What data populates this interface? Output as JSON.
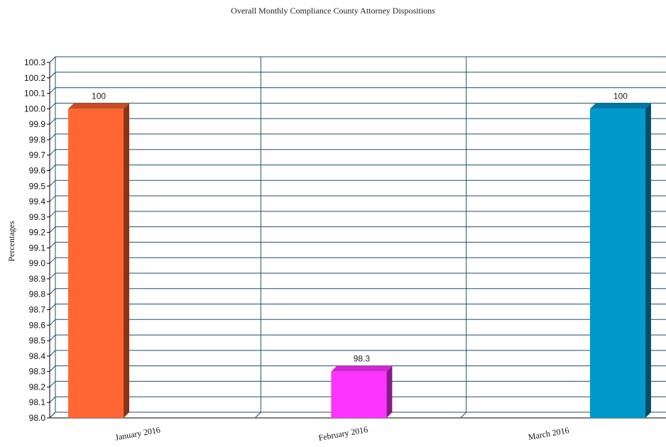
{
  "chart_data": {
    "type": "bar",
    "title": "Overall Monthly Compliance County Attorney Dispositions",
    "ylabel": "Percentages",
    "xlabel": "",
    "categories": [
      "January 2016",
      "February 2016",
      "March 2016"
    ],
    "values": [
      100,
      98.3,
      100
    ],
    "value_labels": [
      "100",
      "98.3",
      "100"
    ],
    "ylim": [
      98.0,
      100.3
    ],
    "ytick_step": 0.1,
    "ytick_labels": [
      "98.0",
      "98.1",
      "98.2",
      "98.3",
      "98.4",
      "98.5",
      "98.6",
      "98.7",
      "98.8",
      "98.9",
      "99.0",
      "99.1",
      "99.2",
      "99.3",
      "99.4",
      "99.5",
      "99.6",
      "99.7",
      "99.8",
      "99.9",
      "100.0",
      "100.1",
      "100.2",
      "100.3"
    ],
    "grid": true,
    "legend": "none",
    "bar_colors": [
      "#ff6633",
      "#ff33ff",
      "#0099cc"
    ],
    "bar_side_colors": [
      "#8a3417",
      "#8a1a8a",
      "#00506b"
    ],
    "bar_top_colors": [
      "#c94d22",
      "#d128d1",
      "#0077a3"
    ],
    "grid_color": "#1f4e6e",
    "style": "3d"
  }
}
